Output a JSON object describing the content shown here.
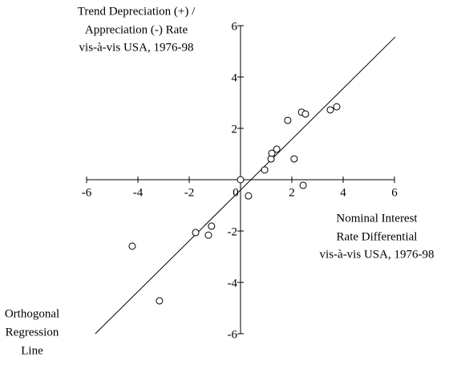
{
  "chart_data": {
    "type": "scatter",
    "y_label": [
      "Trend Depreciation (+) /",
      "Appreciation (-) Rate",
      "vis-à-vis USA, 1976-98"
    ],
    "x_label": [
      "Nominal Interest",
      "Rate Differential",
      "vis-à-vis USA, 1976-98"
    ],
    "line_label": [
      "Orthogonal",
      "Regression",
      "Line"
    ],
    "x": [
      0,
      0.31,
      0.94,
      1.19,
      1.22,
      1.41,
      1.84,
      2.09,
      2.38,
      2.53,
      2.44,
      3.5,
      3.75,
      -4.22,
      -3.16,
      -1.75,
      -1.25,
      -1.13
    ],
    "y": [
      0,
      -0.63,
      0.38,
      0.81,
      1.03,
      1.19,
      2.31,
      0.81,
      2.63,
      2.56,
      -0.22,
      2.72,
      2.84,
      -2.59,
      -4.72,
      -2.06,
      -2.16,
      -1.81
    ],
    "line": {
      "x": [
        -5.66,
        6.03
      ],
      "y": [
        -6,
        5.56
      ]
    },
    "xlim": [
      -6,
      6
    ],
    "ylim": [
      -6,
      6
    ],
    "xticks": [
      -6,
      -4,
      -2,
      0,
      2,
      4,
      6
    ],
    "yticks": [
      -6,
      -4,
      -2,
      2,
      4,
      6
    ],
    "color": "#000000"
  }
}
